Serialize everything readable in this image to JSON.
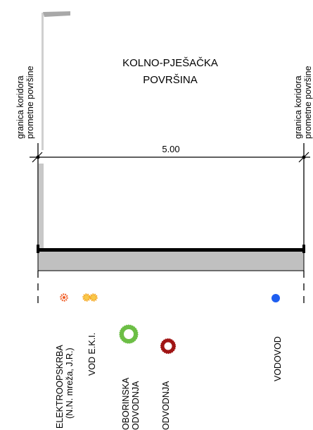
{
  "labels": {
    "corridor_left": [
      "granica koridora",
      "prometne površine"
    ],
    "corridor_right": [
      "granica koridora",
      "prometne površine"
    ],
    "title_line1": "KOLNO-PJEŠAČKA",
    "title_line2": "POVRŠINA",
    "dimension": "5.00",
    "elektro_line1": "ELEKTROOPSKRBA",
    "elektro_line2": "(N.N. mreža, J.R.)",
    "vod_eki": "VOD E.K.I.",
    "oborinska_line1": "OBORINSKA",
    "oborinska_line2": "ODVODNJA",
    "odvodnja": "ODVODNJA",
    "vodovod": "VODOVOD"
  },
  "colors": {
    "elektro": "#f05a22",
    "eki": "#f5a623",
    "oborinska": "#6cbe45",
    "odvodnja": "#a01515",
    "vodovod": "#1e5ef0",
    "pavement": "#c0c0c0",
    "curb": "#c8c8c8",
    "line": "#000000"
  },
  "icons": {
    "elektro": "gear-marker",
    "eki": "double-gear-marker",
    "oborinska": "ring-marker",
    "odvodnja": "ring-marker",
    "vodovod": "dot-marker"
  }
}
